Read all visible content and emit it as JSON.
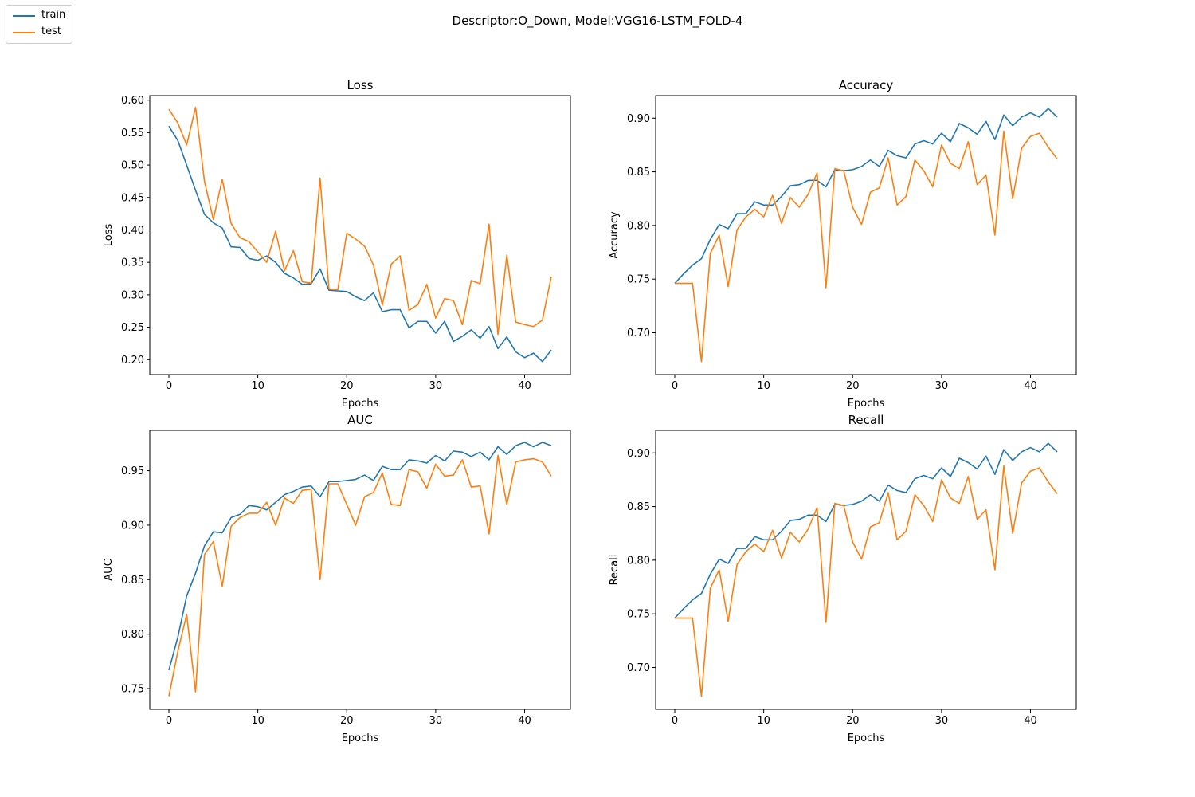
{
  "figure": {
    "title": "Descriptor:O_Down, Model:VGG16-LSTM_FOLD-4"
  },
  "legend": {
    "items": [
      {
        "label": "train",
        "color": "#1f77b4"
      },
      {
        "label": "test",
        "color": "#ff7f0e"
      }
    ],
    "placement": "top-left"
  },
  "chart_data": [
    {
      "type": "line",
      "title": "Loss",
      "xlabel": "Epochs",
      "ylabel": "Loss",
      "xlim": [
        -2.15,
        45.15
      ],
      "ylim": [
        0.177,
        0.607
      ],
      "xticks": [
        0,
        10,
        20,
        30,
        40
      ],
      "yticks": [
        0.2,
        0.25,
        0.3,
        0.35,
        0.4,
        0.45,
        0.5,
        0.55,
        0.6
      ],
      "ytick_decimals": 2,
      "x": [
        0,
        1,
        2,
        3,
        4,
        5,
        6,
        7,
        8,
        9,
        10,
        11,
        12,
        13,
        14,
        15,
        16,
        17,
        18,
        19,
        20,
        21,
        22,
        23,
        24,
        25,
        26,
        27,
        28,
        29,
        30,
        31,
        32,
        33,
        34,
        35,
        36,
        37,
        38,
        39,
        40,
        41,
        42,
        43
      ],
      "series": [
        {
          "name": "train",
          "color": "#1f77b4",
          "values": [
            0.56,
            0.538,
            0.5,
            0.461,
            0.424,
            0.411,
            0.403,
            0.374,
            0.373,
            0.356,
            0.353,
            0.36,
            0.35,
            0.333,
            0.326,
            0.316,
            0.317,
            0.34,
            0.307,
            0.306,
            0.305,
            0.297,
            0.291,
            0.303,
            0.274,
            0.277,
            0.277,
            0.249,
            0.259,
            0.259,
            0.241,
            0.259,
            0.228,
            0.236,
            0.246,
            0.233,
            0.251,
            0.217,
            0.235,
            0.212,
            0.203,
            0.21,
            0.197,
            0.215
          ]
        },
        {
          "name": "test",
          "color": "#ff7f0e",
          "values": [
            0.586,
            0.565,
            0.531,
            0.589,
            0.475,
            0.416,
            0.478,
            0.41,
            0.388,
            0.382,
            0.366,
            0.35,
            0.398,
            0.337,
            0.368,
            0.32,
            0.318,
            0.48,
            0.309,
            0.308,
            0.395,
            0.386,
            0.375,
            0.346,
            0.284,
            0.347,
            0.36,
            0.276,
            0.285,
            0.316,
            0.264,
            0.294,
            0.291,
            0.254,
            0.322,
            0.317,
            0.409,
            0.239,
            0.361,
            0.258,
            0.254,
            0.251,
            0.261,
            0.328
          ]
        }
      ]
    },
    {
      "type": "line",
      "title": "Accuracy",
      "xlabel": "Epochs",
      "ylabel": "Accuracy",
      "xlim": [
        -2.15,
        45.15
      ],
      "ylim": [
        0.661,
        0.921
      ],
      "xticks": [
        0,
        10,
        20,
        30,
        40
      ],
      "yticks": [
        0.7,
        0.75,
        0.8,
        0.85,
        0.9
      ],
      "ytick_decimals": 2,
      "x": [
        0,
        1,
        2,
        3,
        4,
        5,
        6,
        7,
        8,
        9,
        10,
        11,
        12,
        13,
        14,
        15,
        16,
        17,
        18,
        19,
        20,
        21,
        22,
        23,
        24,
        25,
        26,
        27,
        28,
        29,
        30,
        31,
        32,
        33,
        34,
        35,
        36,
        37,
        38,
        39,
        40,
        41,
        42,
        43
      ],
      "series": [
        {
          "name": "train",
          "color": "#1f77b4",
          "values": [
            0.746,
            0.755,
            0.763,
            0.769,
            0.787,
            0.801,
            0.797,
            0.811,
            0.811,
            0.822,
            0.819,
            0.819,
            0.827,
            0.837,
            0.838,
            0.842,
            0.842,
            0.836,
            0.852,
            0.851,
            0.852,
            0.855,
            0.861,
            0.855,
            0.87,
            0.865,
            0.863,
            0.876,
            0.879,
            0.876,
            0.886,
            0.878,
            0.895,
            0.891,
            0.885,
            0.897,
            0.88,
            0.903,
            0.893,
            0.901,
            0.905,
            0.901,
            0.909,
            0.901
          ]
        },
        {
          "name": "test",
          "color": "#ff7f0e",
          "values": [
            0.746,
            0.746,
            0.746,
            0.673,
            0.774,
            0.791,
            0.743,
            0.796,
            0.808,
            0.815,
            0.808,
            0.828,
            0.802,
            0.826,
            0.817,
            0.829,
            0.849,
            0.742,
            0.853,
            0.851,
            0.817,
            0.801,
            0.831,
            0.835,
            0.863,
            0.819,
            0.827,
            0.861,
            0.851,
            0.836,
            0.875,
            0.858,
            0.853,
            0.878,
            0.838,
            0.847,
            0.791,
            0.888,
            0.825,
            0.872,
            0.883,
            0.886,
            0.873,
            0.862
          ]
        }
      ]
    },
    {
      "type": "line",
      "title": "AUC",
      "xlabel": "Epochs",
      "ylabel": "AUC",
      "xlim": [
        -2.15,
        45.15
      ],
      "ylim": [
        0.731,
        0.987
      ],
      "xticks": [
        0,
        10,
        20,
        30,
        40
      ],
      "yticks": [
        0.75,
        0.8,
        0.85,
        0.9,
        0.95
      ],
      "ytick_decimals": 2,
      "x": [
        0,
        1,
        2,
        3,
        4,
        5,
        6,
        7,
        8,
        9,
        10,
        11,
        12,
        13,
        14,
        15,
        16,
        17,
        18,
        19,
        20,
        21,
        22,
        23,
        24,
        25,
        26,
        27,
        28,
        29,
        30,
        31,
        32,
        33,
        34,
        35,
        36,
        37,
        38,
        39,
        40,
        41,
        42,
        43
      ],
      "series": [
        {
          "name": "train",
          "color": "#1f77b4",
          "values": [
            0.767,
            0.797,
            0.835,
            0.856,
            0.881,
            0.894,
            0.893,
            0.907,
            0.91,
            0.918,
            0.917,
            0.914,
            0.921,
            0.928,
            0.931,
            0.935,
            0.936,
            0.926,
            0.94,
            0.94,
            0.941,
            0.942,
            0.946,
            0.941,
            0.954,
            0.951,
            0.951,
            0.96,
            0.959,
            0.957,
            0.964,
            0.959,
            0.968,
            0.967,
            0.963,
            0.967,
            0.96,
            0.972,
            0.965,
            0.973,
            0.976,
            0.972,
            0.976,
            0.973
          ]
        },
        {
          "name": "test",
          "color": "#ff7f0e",
          "values": [
            0.743,
            0.784,
            0.818,
            0.747,
            0.873,
            0.885,
            0.844,
            0.899,
            0.907,
            0.911,
            0.911,
            0.921,
            0.9,
            0.925,
            0.92,
            0.932,
            0.933,
            0.85,
            0.938,
            0.938,
            0.919,
            0.9,
            0.926,
            0.93,
            0.948,
            0.919,
            0.918,
            0.951,
            0.949,
            0.934,
            0.956,
            0.945,
            0.946,
            0.96,
            0.935,
            0.936,
            0.892,
            0.964,
            0.919,
            0.958,
            0.96,
            0.961,
            0.958,
            0.945
          ]
        }
      ]
    },
    {
      "type": "line",
      "title": "Recall",
      "xlabel": "Epochs",
      "ylabel": "Recall",
      "xlim": [
        -2.15,
        45.15
      ],
      "ylim": [
        0.661,
        0.921
      ],
      "xticks": [
        0,
        10,
        20,
        30,
        40
      ],
      "yticks": [
        0.7,
        0.75,
        0.8,
        0.85,
        0.9
      ],
      "ytick_decimals": 2,
      "x": [
        0,
        1,
        2,
        3,
        4,
        5,
        6,
        7,
        8,
        9,
        10,
        11,
        12,
        13,
        14,
        15,
        16,
        17,
        18,
        19,
        20,
        21,
        22,
        23,
        24,
        25,
        26,
        27,
        28,
        29,
        30,
        31,
        32,
        33,
        34,
        35,
        36,
        37,
        38,
        39,
        40,
        41,
        42,
        43
      ],
      "series": [
        {
          "name": "train",
          "color": "#1f77b4",
          "values": [
            0.746,
            0.755,
            0.763,
            0.769,
            0.787,
            0.801,
            0.797,
            0.811,
            0.811,
            0.822,
            0.819,
            0.819,
            0.827,
            0.837,
            0.838,
            0.842,
            0.842,
            0.836,
            0.852,
            0.851,
            0.852,
            0.855,
            0.861,
            0.855,
            0.87,
            0.865,
            0.863,
            0.876,
            0.879,
            0.876,
            0.886,
            0.878,
            0.895,
            0.891,
            0.885,
            0.897,
            0.88,
            0.903,
            0.893,
            0.901,
            0.905,
            0.901,
            0.909,
            0.901
          ]
        },
        {
          "name": "test",
          "color": "#ff7f0e",
          "values": [
            0.746,
            0.746,
            0.746,
            0.673,
            0.774,
            0.791,
            0.743,
            0.796,
            0.808,
            0.815,
            0.808,
            0.828,
            0.802,
            0.826,
            0.817,
            0.829,
            0.849,
            0.742,
            0.853,
            0.851,
            0.817,
            0.801,
            0.831,
            0.835,
            0.863,
            0.819,
            0.827,
            0.861,
            0.851,
            0.836,
            0.875,
            0.858,
            0.853,
            0.878,
            0.838,
            0.847,
            0.791,
            0.888,
            0.825,
            0.872,
            0.883,
            0.886,
            0.873,
            0.862
          ]
        }
      ]
    }
  ]
}
